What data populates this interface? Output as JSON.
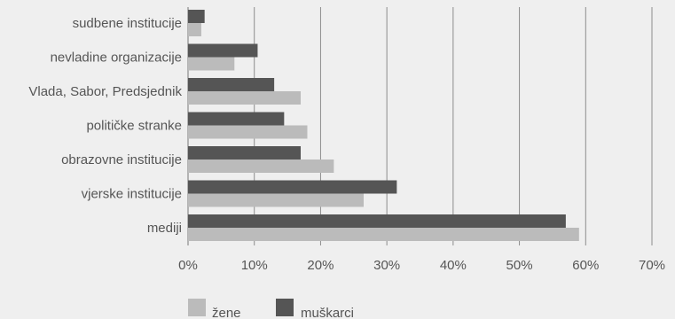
{
  "chart_data": {
    "type": "bar",
    "orientation": "horizontal",
    "categories": [
      "sudbene institucije",
      "nevladine organizacije",
      "Vlada, Sabor, Predsjednik",
      "političke stranke",
      "obrazovne institucije",
      "vjerske institucije",
      "mediji"
    ],
    "series": [
      {
        "name": "muškarci",
        "color": "#555555",
        "values": [
          2.5,
          10.5,
          13,
          14.5,
          17,
          31.5,
          57
        ]
      },
      {
        "name": "žene",
        "color": "#bbbbbb",
        "values": [
          2,
          7,
          17,
          18,
          22,
          26.5,
          59
        ]
      }
    ],
    "xlim": [
      0,
      70
    ],
    "xticks": [
      "0%",
      "10%",
      "20%",
      "30%",
      "40%",
      "50%",
      "60%",
      "70%"
    ],
    "grid": true,
    "legend_position": "bottom-left",
    "legend": [
      "žene",
      "muškarci"
    ]
  }
}
